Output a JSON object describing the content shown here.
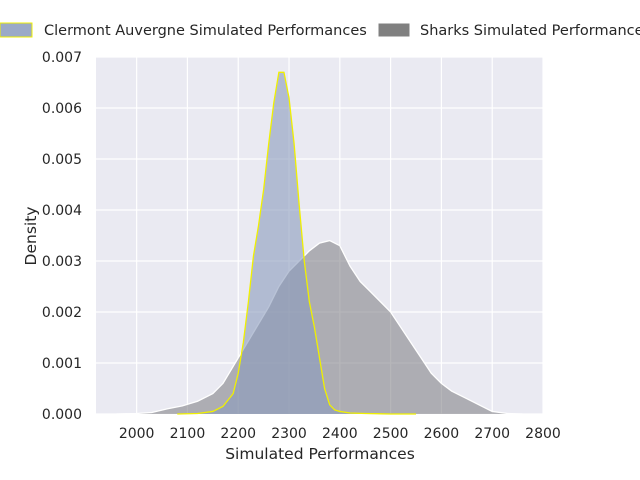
{
  "chart_data": {
    "type": "area",
    "xlabel": "Simulated Performances",
    "ylabel": "Density",
    "xlim": [
      1920,
      2800
    ],
    "ylim": [
      0,
      0.007
    ],
    "x_ticks": [
      2000,
      2100,
      2200,
      2300,
      2400,
      2500,
      2600,
      2700,
      2800
    ],
    "y_ticks": [
      0.0,
      0.001,
      0.002,
      0.003,
      0.004,
      0.005,
      0.006,
      0.007
    ],
    "x_tick_labels": [
      "2000",
      "2100",
      "2200",
      "2300",
      "2400",
      "2500",
      "2600",
      "2700",
      "2800"
    ],
    "y_tick_labels": [
      "0.000",
      "0.001",
      "0.002",
      "0.003",
      "0.004",
      "0.005",
      "0.006",
      "0.007"
    ],
    "grid": true,
    "legend_position": "top",
    "background": "#eaeaf2",
    "series": [
      {
        "name": "Clermont Auvergne Simulated Performances",
        "fill": "#8a9bbd",
        "fill_opacity": 0.6,
        "stroke": "#f0f000",
        "x": [
          2080,
          2120,
          2150,
          2170,
          2190,
          2200,
          2210,
          2220,
          2230,
          2240,
          2250,
          2260,
          2270,
          2280,
          2290,
          2300,
          2310,
          2320,
          2330,
          2340,
          2350,
          2360,
          2370,
          2380,
          2390,
          2400,
          2420,
          2450,
          2500,
          2550
        ],
        "y": [
          0.0,
          1e-05,
          5e-05,
          0.00015,
          0.0004,
          0.0008,
          0.0014,
          0.0022,
          0.0031,
          0.0037,
          0.0044,
          0.0053,
          0.0061,
          0.0067,
          0.0067,
          0.0062,
          0.0053,
          0.0041,
          0.003,
          0.0022,
          0.0017,
          0.0011,
          0.0005,
          0.00018,
          8e-05,
          5e-05,
          2e-05,
          1e-05,
          0.0,
          0.0
        ]
      },
      {
        "name": "Sharks Simulated Performances",
        "fill": "#7a7a80",
        "fill_opacity": 0.55,
        "stroke": "#ffffff",
        "x": [
          1960,
          2000,
          2030,
          2060,
          2090,
          2120,
          2150,
          2170,
          2200,
          2230,
          2260,
          2280,
          2300,
          2320,
          2340,
          2360,
          2380,
          2400,
          2420,
          2440,
          2460,
          2480,
          2500,
          2520,
          2540,
          2560,
          2580,
          2600,
          2620,
          2650,
          2700,
          2730,
          2760
        ],
        "y": [
          0.0,
          1e-05,
          3e-05,
          0.0001,
          0.00016,
          0.00025,
          0.0004,
          0.0006,
          0.0011,
          0.0016,
          0.0021,
          0.0025,
          0.0028,
          0.003,
          0.0032,
          0.00335,
          0.0034,
          0.0033,
          0.0029,
          0.0026,
          0.0024,
          0.0022,
          0.002,
          0.0017,
          0.0014,
          0.0011,
          0.0008,
          0.0006,
          0.00045,
          0.0003,
          5e-05,
          1e-05,
          0.0
        ]
      }
    ]
  }
}
